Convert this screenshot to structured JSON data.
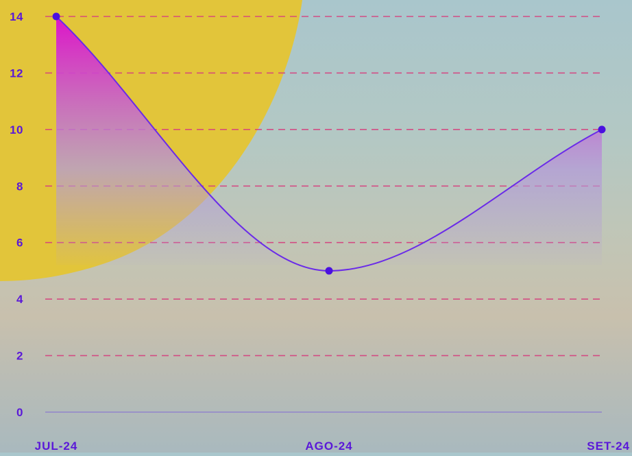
{
  "chart_data": {
    "type": "area",
    "categories": [
      "JUL-24",
      "AGO-24",
      "SET-24"
    ],
    "series": [
      {
        "values": [
          14,
          5,
          10
        ]
      }
    ],
    "ylim": [
      0,
      14
    ],
    "yticks": [
      "0",
      "2",
      "4",
      "6",
      "8",
      "10",
      "12",
      "14"
    ],
    "grid": "horizontal-dashed",
    "legend": "none",
    "colors": {
      "line": "#6a2be8",
      "point": "#4a10e0",
      "grid": "#d6407e",
      "baseline": "#8a7ad0",
      "fill_top": "#dd14c8",
      "fill_bottom": "#b49ad8",
      "sun": "#e2c53a",
      "tick_label": "#5a18d8"
    }
  }
}
